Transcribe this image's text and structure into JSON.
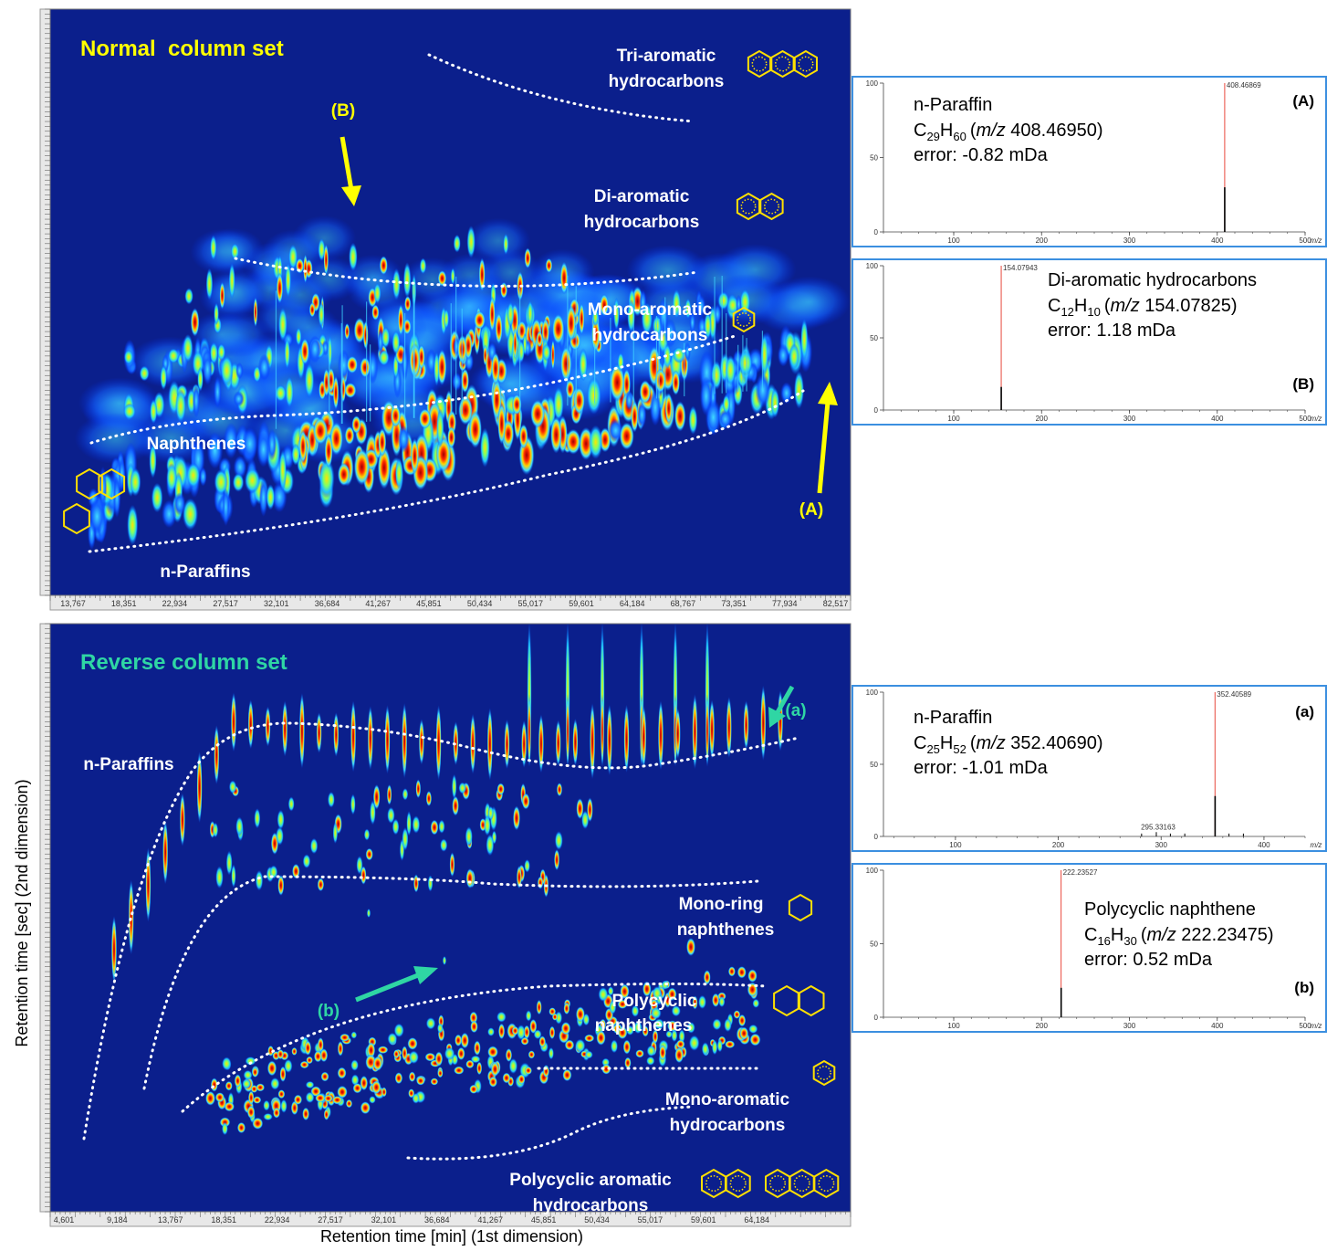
{
  "top_panel": {
    "title": "Normal  column set",
    "labels": [
      "Tri-aromatic",
      "hydrocarbons",
      "Di-aromatic",
      "hydrocarbons",
      "Mono-aromatic",
      "hydrocarbons",
      "Naphthenes",
      "n-Paraffins",
      "(B)",
      "(A)"
    ],
    "x_ticks": [
      "13,767",
      "18,351",
      "22,934",
      "27,517",
      "32,101",
      "36,684",
      "41,267",
      "45,851",
      "50,434",
      "55,017",
      "59,601",
      "64,184",
      "68,767",
      "73,351",
      "77,934",
      "82,517"
    ]
  },
  "bottom_panel": {
    "title": "Reverse column set",
    "labels": [
      "n-Paraffins",
      "(a)",
      "Mono-ring",
      "naphthenes",
      "Polycyclic",
      "naphthenes",
      "(b)",
      "Mono-aromatic",
      "hydrocarbons",
      "Polycyclic aromatic",
      "hydrocarbons"
    ],
    "x_ticks": [
      "4,601",
      "9,184",
      "13,767",
      "18,351",
      "22,934",
      "27,517",
      "32,101",
      "36,684",
      "41,267",
      "45,851",
      "50,434",
      "55,017",
      "59,601",
      "64,184"
    ]
  },
  "y_axis_label": "Retention time [sec] (2nd dimension)",
  "x_axis_label": "Retention time [min] (1st dimension)",
  "spectra": [
    {
      "tag": "(A)",
      "compound": "n-Paraffin",
      "element_1": "C",
      "count_1": "29",
      "element_2": "H",
      "count_2": "60",
      "mz_open": "(",
      "mz_label": "m/z",
      "mz_value": " 408.46950)",
      "error": "error: -0.82 mDa",
      "xlim": [
        20,
        500
      ],
      "xticks": [
        100,
        200,
        300,
        400,
        500
      ],
      "x_unit": "m/z",
      "ylim": [
        0,
        100
      ],
      "yticks": [
        0,
        50,
        100
      ],
      "peaks": [
        {
          "mz": 408.46869,
          "intensity": 100,
          "color": "#e8483c",
          "labeled": true
        },
        {
          "mz": 408.5,
          "intensity": 30,
          "color": "#000000",
          "labeled": false
        }
      ]
    },
    {
      "tag": "(B)",
      "compound": "Di-aromatic hydrocarbons",
      "element_1": "C",
      "count_1": "12",
      "element_2": "H",
      "count_2": "10",
      "mz_open": "(",
      "mz_label": "m/z",
      "mz_value": " 154.07825)",
      "error": "error: 1.18 mDa",
      "xlim": [
        20,
        500
      ],
      "xticks": [
        100,
        200,
        300,
        400,
        500
      ],
      "x_unit": "m/z",
      "ylim": [
        0,
        100
      ],
      "yticks": [
        0,
        50,
        100
      ],
      "peaks": [
        {
          "mz": 154.07943,
          "intensity": 100,
          "color": "#e8483c",
          "labeled": true
        },
        {
          "mz": 154.1,
          "intensity": 16,
          "color": "#000000",
          "labeled": false
        }
      ]
    },
    {
      "tag": "(a)",
      "compound": "n-Paraffin",
      "element_1": "C",
      "count_1": "25",
      "element_2": "H",
      "count_2": "52",
      "mz_open": "(",
      "mz_label": "m/z",
      "mz_value": " 352.40690)",
      "error": "error: -1.01 mDa",
      "xlim": [
        30,
        440
      ],
      "xticks": [
        100,
        200,
        300,
        400
      ],
      "x_unit": "m/z",
      "ylim": [
        0,
        100
      ],
      "yticks": [
        0,
        50,
        100
      ],
      "peaks": [
        {
          "mz": 352.40589,
          "intensity": 100,
          "color": "#e8483c",
          "labeled": true
        },
        {
          "mz": 352.5,
          "intensity": 28,
          "color": "#000000",
          "labeled": false
        },
        {
          "mz": 295.33163,
          "intensity": 3,
          "color": "#000000",
          "labeled": true
        },
        {
          "mz": 281,
          "intensity": 2,
          "color": "#000000",
          "labeled": false
        },
        {
          "mz": 309,
          "intensity": 2,
          "color": "#000000",
          "labeled": false
        },
        {
          "mz": 323,
          "intensity": 2,
          "color": "#000000",
          "labeled": false
        },
        {
          "mz": 366,
          "intensity": 2,
          "color": "#000000",
          "labeled": false
        },
        {
          "mz": 380,
          "intensity": 2,
          "color": "#000000",
          "labeled": false
        }
      ]
    },
    {
      "tag": "(b)",
      "compound": "Polycyclic naphthene",
      "element_1": "C",
      "count_1": "16",
      "element_2": "H",
      "count_2": "30",
      "mz_open": "(",
      "mz_label": "m/z",
      "mz_value": " 222.23475)",
      "error": "error: 0.52 mDa",
      "xlim": [
        20,
        500
      ],
      "xticks": [
        100,
        200,
        300,
        400,
        500
      ],
      "x_unit": "m/z",
      "ylim": [
        0,
        100
      ],
      "yticks": [
        0,
        50,
        100
      ],
      "peaks": [
        {
          "mz": 222.23527,
          "intensity": 100,
          "color": "#e8483c",
          "labeled": true
        },
        {
          "mz": 222.3,
          "intensity": 20,
          "color": "#000000",
          "labeled": false
        }
      ]
    }
  ]
}
